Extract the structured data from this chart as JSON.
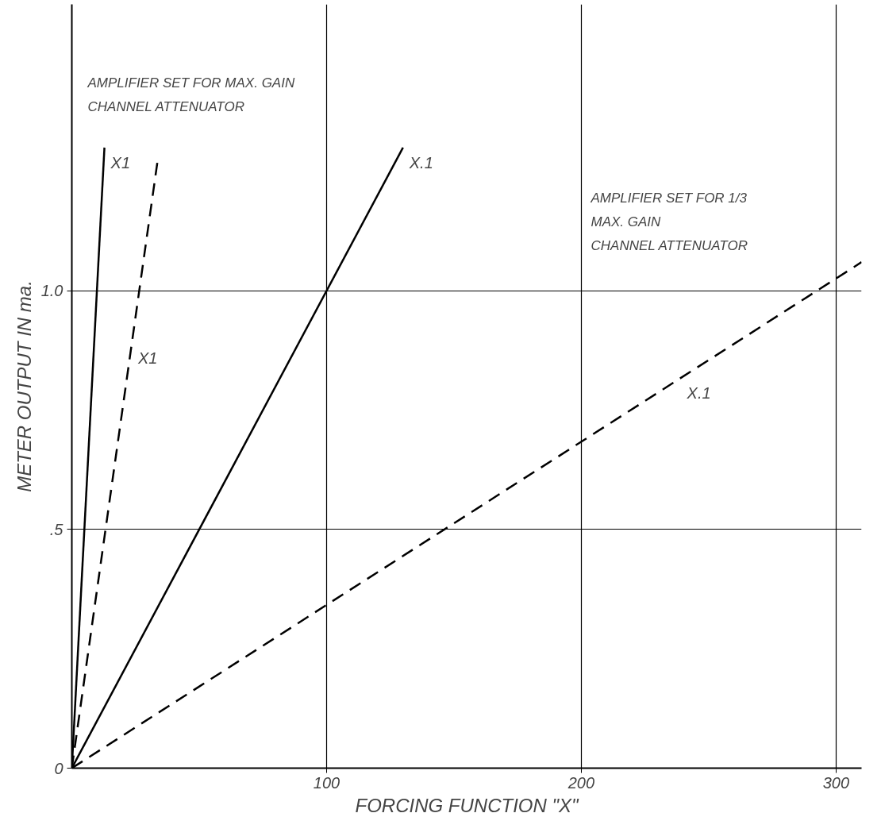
{
  "chart_data": {
    "type": "line",
    "xlabel": "FORCING FUNCTION \"X\"",
    "ylabel": "METER OUTPUT IN ma.",
    "xlim": [
      0,
      310
    ],
    "ylim": [
      0,
      1.6
    ],
    "xticks": [
      100,
      200,
      300
    ],
    "yticks": [
      0,
      {
        "value": 0.5,
        "label": ".5"
      },
      {
        "value": 1.0,
        "label": "1.0"
      }
    ],
    "grid": true,
    "marker": "none",
    "series": [
      {
        "color": "#000000",
        "line_style": "solid",
        "x": [
          0,
          12.8
        ],
        "values": [
          0,
          1.3
        ]
      },
      {
        "color": "#000000",
        "line_style": "dashed",
        "x": [
          0,
          33.6
        ],
        "values": [
          0,
          1.27
        ]
      },
      {
        "color": "#000000",
        "line_style": "solid",
        "x": [
          0,
          130
        ],
        "values": [
          0,
          1.3
        ]
      },
      {
        "color": "#000000",
        "line_style": "dashed",
        "x": [
          0,
          310
        ],
        "values": [
          0,
          1.06
        ]
      }
    ],
    "annotations": [
      "AMPLIFIER SET FOR MAX. GAIN",
      "CHANNEL ATTENUATOR",
      {
        "text": "X1",
        "x": 12.8,
        "y": 1.3
      },
      {
        "text": "X.1",
        "x": 130,
        "y": 1.3
      },
      "AMPLIFIER SET FOR 1/3",
      "MAX. GAIN",
      "CHANNEL ATTENUATOR",
      {
        "text": "X1",
        "x": 23.5,
        "y": 0.89
      },
      {
        "text": "X.1",
        "x": 239,
        "y": 0.817
      }
    ]
  }
}
